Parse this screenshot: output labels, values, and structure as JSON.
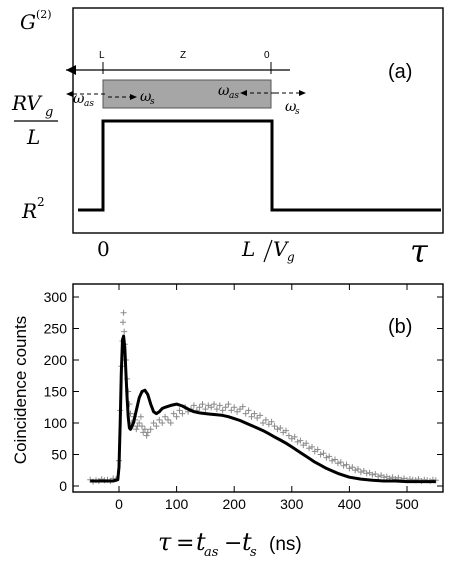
{
  "chart_data": [
    {
      "type": "line",
      "panel_label": "(a)",
      "ylabel": "G(2)",
      "xlabel": "τ",
      "y_tick_labels": [
        "RVg/L",
        "R2"
      ],
      "x_tick_labels": [
        "0",
        "L/Vg"
      ],
      "schematic": {
        "left_label": "L",
        "center_label": "Z",
        "right_label": "0",
        "omega_as": "ωas",
        "omega_s": "ωs"
      },
      "x": [
        -0.18,
        0,
        0,
        1,
        1,
        2.05
      ],
      "y": [
        0,
        0,
        1,
        1,
        0,
        0
      ],
      "note_levels": {
        "low": "R2",
        "high": "RVg/L"
      }
    },
    {
      "type": "scatter",
      "panel_label": "(b)",
      "ylabel": "Coincidence counts",
      "xlabel": "τ = tas − ts (ns)",
      "xlim": [
        -60,
        560
      ],
      "ylim": [
        0,
        300
      ],
      "x_ticks": [
        0,
        100,
        200,
        300,
        400,
        500
      ],
      "y_ticks": [
        0,
        50,
        100,
        150,
        200,
        250,
        300
      ],
      "series": [
        {
          "kind": "scatter",
          "marker": "+",
          "color": "#8a8a8a",
          "points": [
            [
              -50,
              10
            ],
            [
              -45,
              7
            ],
            [
              -40,
              9
            ],
            [
              -35,
              8
            ],
            [
              -30,
              11
            ],
            [
              -25,
              9
            ],
            [
              -20,
              10
            ],
            [
              -15,
              8
            ],
            [
              -10,
              12
            ],
            [
              -5,
              11
            ],
            [
              0,
              40
            ],
            [
              2,
              120
            ],
            [
              4,
              190
            ],
            [
              6,
              230
            ],
            [
              7,
              260
            ],
            [
              8,
              275
            ],
            [
              9,
              245
            ],
            [
              10,
              225
            ],
            [
              12,
              200
            ],
            [
              14,
              170
            ],
            [
              16,
              150
            ],
            [
              18,
              130
            ],
            [
              20,
              115
            ],
            [
              22,
              100
            ],
            [
              24,
              95
            ],
            [
              26,
              110
            ],
            [
              28,
              105
            ],
            [
              30,
              90
            ],
            [
              32,
              95
            ],
            [
              35,
              100
            ],
            [
              38,
              110
            ],
            [
              40,
              95
            ],
            [
              42,
              85
            ],
            [
              45,
              90
            ],
            [
              48,
              80
            ],
            [
              50,
              85
            ],
            [
              55,
              90
            ],
            [
              60,
              100
            ],
            [
              65,
              95
            ],
            [
              70,
              105
            ],
            [
              75,
              100
            ],
            [
              80,
              110
            ],
            [
              85,
              105
            ],
            [
              90,
              100
            ],
            [
              95,
              115
            ],
            [
              100,
              110
            ],
            [
              105,
              120
            ],
            [
              110,
              115
            ],
            [
              115,
              125
            ],
            [
              120,
              118
            ],
            [
              125,
              122
            ],
            [
              130,
              128
            ],
            [
              135,
              120
            ],
            [
              140,
              125
            ],
            [
              145,
              130
            ],
            [
              150,
              122
            ],
            [
              155,
              128
            ],
            [
              160,
              125
            ],
            [
              165,
              130
            ],
            [
              170,
              122
            ],
            [
              175,
              128
            ],
            [
              180,
              120
            ],
            [
              185,
              125
            ],
            [
              190,
              130
            ],
            [
              195,
              120
            ],
            [
              200,
              125
            ],
            [
              205,
              118
            ],
            [
              210,
              122
            ],
            [
              215,
              126
            ],
            [
              220,
              115
            ],
            [
              225,
              120
            ],
            [
              230,
              110
            ],
            [
              235,
              115
            ],
            [
              240,
              108
            ],
            [
              245,
              112
            ],
            [
              250,
              100
            ],
            [
              255,
              105
            ],
            [
              260,
              98
            ],
            [
              265,
              102
            ],
            [
              270,
              95
            ],
            [
              275,
              90
            ],
            [
              280,
              92
            ],
            [
              285,
              85
            ],
            [
              290,
              88
            ],
            [
              295,
              80
            ],
            [
              300,
              75
            ],
            [
              305,
              78
            ],
            [
              310,
              70
            ],
            [
              315,
              72
            ],
            [
              320,
              65
            ],
            [
              325,
              68
            ],
            [
              330,
              60
            ],
            [
              335,
              62
            ],
            [
              340,
              55
            ],
            [
              345,
              58
            ],
            [
              350,
              50
            ],
            [
              355,
              52
            ],
            [
              360,
              45
            ],
            [
              365,
              47
            ],
            [
              370,
              40
            ],
            [
              375,
              42
            ],
            [
              380,
              36
            ],
            [
              385,
              38
            ],
            [
              390,
              32
            ],
            [
              395,
              34
            ],
            [
              400,
              28
            ],
            [
              405,
              30
            ],
            [
              410,
              25
            ],
            [
              415,
              27
            ],
            [
              420,
              22
            ],
            [
              425,
              24
            ],
            [
              430,
              20
            ],
            [
              435,
              21
            ],
            [
              440,
              18
            ],
            [
              445,
              19
            ],
            [
              450,
              15
            ],
            [
              455,
              17
            ],
            [
              460,
              14
            ],
            [
              465,
              15
            ],
            [
              470,
              12
            ],
            [
              475,
              14
            ],
            [
              480,
              11
            ],
            [
              485,
              13
            ],
            [
              490,
              10
            ],
            [
              495,
              12
            ],
            [
              500,
              9
            ],
            [
              505,
              11
            ],
            [
              510,
              10
            ],
            [
              515,
              9
            ],
            [
              520,
              11
            ],
            [
              525,
              8
            ],
            [
              530,
              10
            ],
            [
              535,
              9
            ],
            [
              540,
              8
            ],
            [
              545,
              10
            ],
            [
              550,
              9
            ]
          ]
        },
        {
          "kind": "line",
          "color": "#000000",
          "points": [
            [
              -50,
              8
            ],
            [
              -10,
              8
            ],
            [
              -2,
              10
            ],
            [
              0,
              30
            ],
            [
              2,
              100
            ],
            [
              4,
              180
            ],
            [
              6,
              232
            ],
            [
              8,
              238
            ],
            [
              10,
              220
            ],
            [
              12,
              180
            ],
            [
              14,
              140
            ],
            [
              16,
              110
            ],
            [
              18,
              92
            ],
            [
              20,
              90
            ],
            [
              25,
              100
            ],
            [
              30,
              120
            ],
            [
              35,
              140
            ],
            [
              40,
              150
            ],
            [
              45,
              152
            ],
            [
              50,
              145
            ],
            [
              55,
              130
            ],
            [
              60,
              118
            ],
            [
              65,
              115
            ],
            [
              70,
              118
            ],
            [
              75,
              123
            ],
            [
              80,
              125
            ],
            [
              90,
              128
            ],
            [
              100,
              130
            ],
            [
              110,
              127
            ],
            [
              120,
              122
            ],
            [
              130,
              118
            ],
            [
              140,
              116
            ],
            [
              150,
              115
            ],
            [
              160,
              114
            ],
            [
              170,
              113
            ],
            [
              180,
              112
            ],
            [
              190,
              110
            ],
            [
              200,
              107
            ],
            [
              210,
              104
            ],
            [
              220,
              100
            ],
            [
              230,
              96
            ],
            [
              240,
              92
            ],
            [
              250,
              88
            ],
            [
              260,
              83
            ],
            [
              270,
              78
            ],
            [
              280,
              73
            ],
            [
              290,
              68
            ],
            [
              300,
              62
            ],
            [
              310,
              56
            ],
            [
              320,
              50
            ],
            [
              330,
              44
            ],
            [
              340,
              38
            ],
            [
              350,
              33
            ],
            [
              360,
              28
            ],
            [
              370,
              24
            ],
            [
              380,
              20
            ],
            [
              390,
              17
            ],
            [
              400,
              14
            ],
            [
              420,
              11
            ],
            [
              440,
              9
            ],
            [
              460,
              8
            ],
            [
              480,
              8
            ],
            [
              500,
              7
            ],
            [
              520,
              7
            ],
            [
              540,
              7
            ],
            [
              550,
              7
            ]
          ]
        }
      ]
    }
  ]
}
